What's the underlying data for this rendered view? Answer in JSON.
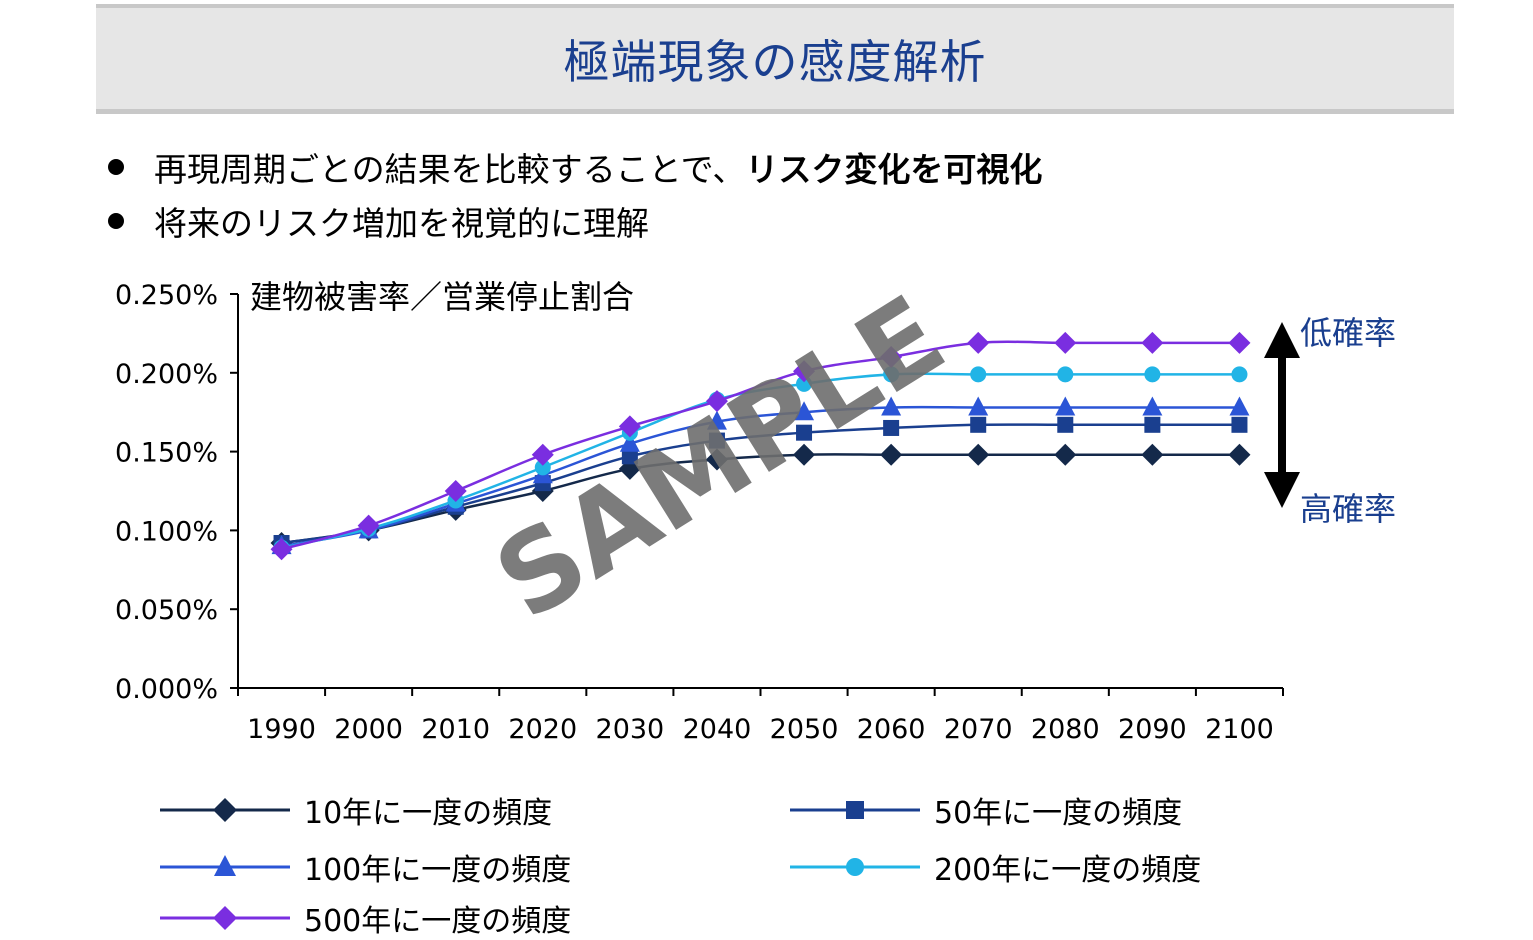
{
  "title": "極端現象の感度解析",
  "bullets": {
    "b1_plain": "再現周期ごとの結果を比較することで、",
    "b1_bold": "リスク変化を可視化",
    "b2": "将来のリスク増加を視覚的に理解"
  },
  "side_labels": {
    "top": "低確率",
    "bottom": "高確率"
  },
  "watermark": "SAMPLE",
  "colors": {
    "title": "#1a3f8f",
    "s10": "#14294a",
    "s50": "#1a3f8f",
    "s100": "#2b55d6",
    "s200": "#21b4e6",
    "s500": "#7a2ee0"
  },
  "chart_data": {
    "type": "line",
    "title": "建物被害率／営業停止割合",
    "categories": [
      "1990",
      "2000",
      "2010",
      "2020",
      "2030",
      "2040",
      "2050",
      "2060",
      "2070",
      "2080",
      "2090",
      "2100"
    ],
    "ylim": [
      0,
      0.25
    ],
    "yticks": [
      "0.000%",
      "0.050%",
      "0.100%",
      "0.150%",
      "0.200%",
      "0.250%"
    ],
    "legend_position": "bottom",
    "series": [
      {
        "name": "10年に一度の頻度",
        "marker": "diamond",
        "color": "#14294a",
        "values": [
          0.092,
          0.1,
          0.113,
          0.125,
          0.139,
          0.145,
          0.148,
          0.148,
          0.148,
          0.148,
          0.148,
          0.148
        ]
      },
      {
        "name": "50年に一度の頻度",
        "marker": "square",
        "color": "#1a3f8f",
        "values": [
          0.092,
          0.1,
          0.115,
          0.13,
          0.147,
          0.157,
          0.162,
          0.165,
          0.167,
          0.167,
          0.167,
          0.167
        ]
      },
      {
        "name": "100年に一度の頻度",
        "marker": "triangle",
        "color": "#2b55d6",
        "values": [
          0.09,
          0.1,
          0.117,
          0.135,
          0.155,
          0.169,
          0.175,
          0.178,
          0.178,
          0.178,
          0.178,
          0.178
        ]
      },
      {
        "name": "200年に一度の頻度",
        "marker": "circle",
        "color": "#21b4e6",
        "values": [
          0.089,
          0.101,
          0.119,
          0.14,
          0.162,
          0.183,
          0.193,
          0.199,
          0.199,
          0.199,
          0.199,
          0.199
        ]
      },
      {
        "name": "500年に一度の頻度",
        "marker": "diamond",
        "color": "#7a2ee0",
        "values": [
          0.088,
          0.103,
          0.125,
          0.148,
          0.166,
          0.182,
          0.201,
          0.21,
          0.219,
          0.219,
          0.219,
          0.219
        ]
      }
    ]
  }
}
